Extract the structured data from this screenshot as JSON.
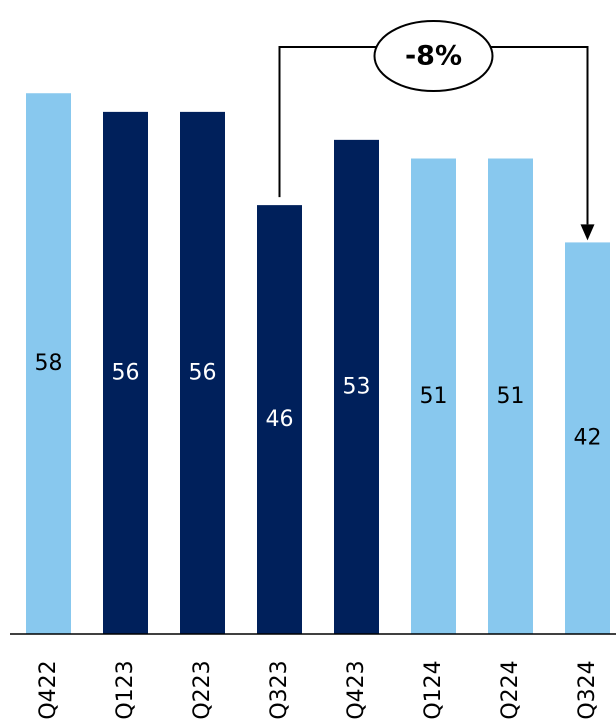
{
  "chart_data": {
    "type": "bar",
    "categories": [
      "Q422",
      "Q123",
      "Q223",
      "Q323",
      "Q423",
      "Q124",
      "Q224",
      "Q324"
    ],
    "values": [
      58,
      56,
      56,
      46,
      53,
      51,
      51,
      42
    ],
    "bar_colors": [
      "#88C8EE",
      "#00205B",
      "#00205B",
      "#00205B",
      "#00205B",
      "#88C8EE",
      "#88C8EE",
      "#88C8EE"
    ],
    "label_colors": [
      "#000000",
      "#ffffff",
      "#ffffff",
      "#ffffff",
      "#ffffff",
      "#000000",
      "#000000",
      "#000000"
    ],
    "ylim": [
      0,
      68
    ],
    "grid": false,
    "annotation": {
      "text": "-8%",
      "from_category": "Q323",
      "to_category": "Q324"
    }
  }
}
